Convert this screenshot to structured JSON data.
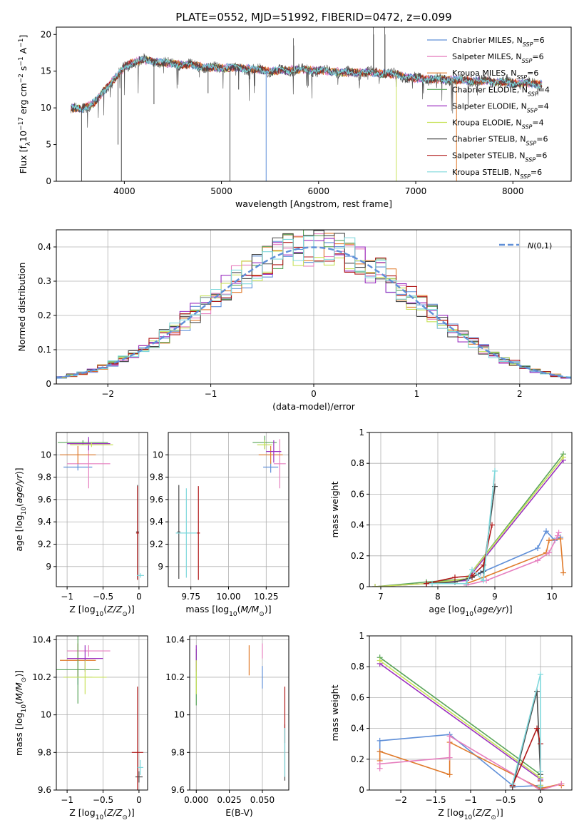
{
  "figure": {
    "title": "PLATE=0552, MJD=51992, FIBERID=0472, z=0.099"
  },
  "colors": {
    "chabrier_miles": "#5f8fd8",
    "salpeter_miles": "#e67fbf",
    "kroupa_miles": "#e07a2a",
    "chabrier_elodie": "#5aa55a",
    "salpeter_elodie": "#9b30c0",
    "kroupa_elodie": "#c8e25a",
    "chabrier_stelib": "#4a4a4a",
    "salpeter_stelib": "#b01818",
    "kroupa_stelib": "#7fd8dc",
    "normal_curve": "#5f8fd8"
  },
  "chart_data": [
    {
      "id": "spectrum",
      "type": "line",
      "xlabel": "wavelength [Angstrom, rest frame]",
      "ylabel": "Flux [f_λ10^-17 erg cm^-2 s^-1 A^-1]",
      "xlim": [
        3300,
        8600
      ],
      "ylim": [
        0,
        21
      ],
      "xticks": [
        4000,
        5000,
        6000,
        7000,
        8000
      ],
      "yticks": [
        0,
        5,
        10,
        15,
        20
      ],
      "grid": false,
      "legend_position": "right",
      "legend": [
        {
          "color_key": "chabrier_miles",
          "text": "Chabrier MILES, N",
          "sub": "SSP",
          "tail": "=6"
        },
        {
          "color_key": "salpeter_miles",
          "text": "Salpeter MILES, N",
          "sub": "SSP",
          "tail": "=6"
        },
        {
          "color_key": "kroupa_miles",
          "text": "Kroupa MILES, N",
          "sub": "SSP",
          "tail": "=6"
        },
        {
          "color_key": "chabrier_elodie",
          "text": "Chabrier ELODIE, N",
          "sub": "SSP",
          "tail": "=4"
        },
        {
          "color_key": "salpeter_elodie",
          "text": "Salpeter ELODIE, N",
          "sub": "SSP",
          "tail": "=4"
        },
        {
          "color_key": "kroupa_elodie",
          "text": "Kroupa ELODIE, N",
          "sub": "SSP",
          "tail": "=4"
        },
        {
          "color_key": "chabrier_stelib",
          "text": "Chabrier STELIB, N",
          "sub": "SSP",
          "tail": "=6"
        },
        {
          "color_key": "salpeter_stelib",
          "text": "Salpeter STELIB, N",
          "sub": "SSP",
          "tail": "=6"
        },
        {
          "color_key": "kroupa_stelib",
          "text": "Kroupa STELIB, N",
          "sub": "SSP",
          "tail": "=6"
        }
      ],
      "continuum_nodes": {
        "x": [
          3450,
          3550,
          3700,
          3800,
          3900,
          4000,
          4100,
          4200,
          4300,
          4500,
          4700,
          4900,
          5100,
          5300,
          5500,
          5800,
          6000,
          6300,
          6600,
          6800,
          7000,
          7200,
          7400,
          7600,
          7800,
          8000,
          8200,
          8300
        ],
        "y": [
          10.0,
          9.8,
          10.8,
          12.5,
          14.0,
          15.5,
          16.3,
          16.5,
          16.3,
          16.0,
          15.8,
          15.4,
          15.5,
          15.3,
          15.0,
          15.2,
          15.1,
          14.8,
          14.8,
          14.5,
          14.0,
          13.9,
          13.8,
          13.7,
          13.6,
          13.4,
          13.3,
          13.2
        ]
      },
      "absorption_lines": [
        {
          "x": 3560,
          "y": 0
        },
        {
          "x": 3935,
          "y": 5
        },
        {
          "x": 3970,
          "y": 0
        },
        {
          "x": 4305,
          "y": 10.5
        },
        {
          "x": 4862,
          "y": 12
        },
        {
          "x": 5087,
          "y": 0
        },
        {
          "x": 5177,
          "y": 12.5
        },
        {
          "x": 5460,
          "y": 0
        },
        {
          "x": 5893,
          "y": 13
        },
        {
          "x": 6800,
          "y": 0
        },
        {
          "x": 7420,
          "y": 0
        }
      ],
      "emission_spikes": [
        {
          "x": 5740,
          "y": 19.5
        },
        {
          "x": 6563,
          "y": 21
        },
        {
          "x": 6680,
          "y": 21
        }
      ]
    },
    {
      "id": "residual_histogram",
      "type": "histogram",
      "xlabel": "(data-model)/error",
      "ylabel": "Normed distribution",
      "xlim": [
        -2.5,
        2.5
      ],
      "ylim": [
        0,
        0.45
      ],
      "xticks": [
        -2,
        -1,
        0,
        1,
        2
      ],
      "yticks": [
        0.0,
        0.1,
        0.2,
        0.3,
        0.4
      ],
      "grid": true,
      "legend_position": "top-right",
      "legend_label": "N(0,1)",
      "bins": 50
    },
    {
      "id": "age_vs_Z",
      "type": "errorbar",
      "xlabel": "Z [log10(Z/Z⊙)]",
      "ylabel": "age  [log10(age/yr)]",
      "xlim": [
        -1.15,
        0.12
      ],
      "ylim": [
        8.82,
        10.2
      ],
      "xticks": [
        -1.0,
        -0.5,
        0.0
      ],
      "yticks": [
        9.0,
        9.2,
        9.4,
        9.6,
        9.8,
        10.0
      ],
      "grid": true,
      "points": [
        {
          "color_key": "chabrier_miles",
          "x": -0.85,
          "xerr": 0.2,
          "y": 9.89,
          "yerr": 0.03
        },
        {
          "color_key": "salpeter_miles",
          "x": -0.7,
          "xerr": 0.3,
          "y": 9.92,
          "yerr": 0.22
        },
        {
          "color_key": "kroupa_miles",
          "x": -0.85,
          "xerr": 0.25,
          "y": 10.0,
          "yerr": 0.08
        },
        {
          "color_key": "chabrier_elodie",
          "x": -0.78,
          "xerr": 0.35,
          "y": 10.11,
          "yerr": 0.02
        },
        {
          "color_key": "salpeter_elodie",
          "x": -0.7,
          "xerr": 0.3,
          "y": 10.1,
          "yerr": 0.06
        },
        {
          "color_key": "kroupa_elodie",
          "x": -0.66,
          "xerr": 0.3,
          "y": 10.09,
          "yerr": 0.02
        },
        {
          "color_key": "chabrier_stelib",
          "x": -0.02,
          "xerr": 0.02,
          "y": 9.31,
          "yerr": 0.42
        },
        {
          "color_key": "salpeter_stelib",
          "x": -0.02,
          "xerr": 0.02,
          "y": 9.3,
          "yerr": 0.42
        },
        {
          "color_key": "kroupa_stelib",
          "x": 0.02,
          "xerr": 0.05,
          "y": 8.92,
          "yerr": 0.02
        }
      ]
    },
    {
      "id": "age_vs_mass",
      "type": "errorbar",
      "xlabel": "mass [log10(M/M⊙)]",
      "ylabel": "",
      "xlim": [
        9.6,
        10.4
      ],
      "ylim": [
        8.82,
        10.2
      ],
      "xticks": [
        9.75,
        10.0,
        10.25
      ],
      "xtick_labels": [
        "9.75",
        "10.00",
        "10.25"
      ],
      "yticks": [
        9.0,
        9.2,
        9.4,
        9.6,
        9.8,
        10.0
      ],
      "grid": true,
      "points": [
        {
          "color_key": "chabrier_miles",
          "x": 10.28,
          "xerr": 0.05,
          "y": 9.89,
          "yerr": 0.05
        },
        {
          "color_key": "salpeter_miles",
          "x": 10.34,
          "xerr": 0.04,
          "y": 9.92,
          "yerr": 0.22
        },
        {
          "color_key": "kroupa_miles",
          "x": 10.28,
          "xerr": 0.08,
          "y": 10.0,
          "yerr": 0.08
        },
        {
          "color_key": "chabrier_elodie",
          "x": 10.24,
          "xerr": 0.08,
          "y": 10.11,
          "yerr": 0.06
        },
        {
          "color_key": "salpeter_elodie",
          "x": 10.3,
          "xerr": 0.05,
          "y": 10.03,
          "yerr": 0.1
        },
        {
          "color_key": "kroupa_elodie",
          "x": 10.24,
          "xerr": 0.05,
          "y": 10.09,
          "yerr": 0.04
        },
        {
          "color_key": "chabrier_stelib",
          "x": 9.67,
          "xerr": 0.01,
          "y": 9.31,
          "yerr": 0.42
        },
        {
          "color_key": "salpeter_stelib",
          "x": 9.8,
          "xerr": 0.01,
          "y": 9.3,
          "yerr": 0.42
        },
        {
          "color_key": "kroupa_stelib",
          "x": 9.72,
          "xerr": 0.07,
          "y": 9.3,
          "yerr": 0.4
        }
      ]
    },
    {
      "id": "weight_vs_age",
      "type": "line",
      "xlabel": "age  [log10(age/yr)]",
      "ylabel": "mass weight",
      "xlim": [
        6.8,
        10.35
      ],
      "ylim": [
        0,
        1.0
      ],
      "xticks": [
        7,
        8,
        9,
        10
      ],
      "yticks": [
        0.0,
        0.2,
        0.4,
        0.6,
        0.8,
        1.0
      ],
      "grid": true,
      "series": [
        {
          "color_key": "chabrier_miles",
          "x": [
            8.5,
            8.75,
            9.75,
            9.9,
            10.05,
            10.15
          ],
          "y": [
            0.04,
            0.09,
            0.25,
            0.36,
            0.3,
            0.32
          ]
        },
        {
          "color_key": "kroupa_miles",
          "x": [
            8.5,
            8.8,
            9.9,
            9.95,
            10.15,
            10.2
          ],
          "y": [
            0.02,
            0.06,
            0.22,
            0.3,
            0.31,
            0.09
          ]
        },
        {
          "color_key": "salpeter_miles",
          "x": [
            8.5,
            8.85,
            9.75,
            9.95,
            10.1,
            10.12
          ],
          "y": [
            0.01,
            0.04,
            0.17,
            0.22,
            0.33,
            0.35
          ]
        },
        {
          "color_key": "chabrier_elodie",
          "x": [
            6.9,
            7.8,
            8.5,
            10.2
          ],
          "y": [
            0.0,
            0.03,
            0.05,
            0.86
          ]
        },
        {
          "color_key": "salpeter_elodie",
          "x": [
            6.9,
            7.8,
            8.5,
            10.2
          ],
          "y": [
            0.0,
            0.02,
            0.04,
            0.82
          ]
        },
        {
          "color_key": "kroupa_elodie",
          "x": [
            6.9,
            7.8,
            8.5,
            10.2
          ],
          "y": [
            0.0,
            0.02,
            0.05,
            0.84
          ]
        },
        {
          "color_key": "chabrier_stelib",
          "x": [
            7.8,
            8.3,
            8.6,
            8.8,
            9.0
          ],
          "y": [
            0.02,
            0.03,
            0.06,
            0.1,
            0.65
          ]
        },
        {
          "color_key": "salpeter_stelib",
          "x": [
            7.8,
            8.3,
            8.6,
            8.8,
            8.95
          ],
          "y": [
            0.02,
            0.06,
            0.07,
            0.14,
            0.4
          ]
        },
        {
          "color_key": "kroupa_stelib",
          "x": [
            7.9,
            8.5,
            8.6,
            8.8,
            9.0
          ],
          "y": [
            0.02,
            0.02,
            0.11,
            0.04,
            0.75
          ]
        }
      ]
    },
    {
      "id": "mass_vs_Z",
      "type": "errorbar",
      "xlabel": "Z [log10(Z/Z⊙)]",
      "ylabel": "mass [log10(M/M⊙)]",
      "xlim": [
        -1.15,
        0.12
      ],
      "ylim": [
        9.6,
        10.42
      ],
      "xticks": [
        -1.0,
        -0.5,
        0.0
      ],
      "yticks": [
        9.6,
        9.8,
        10.0,
        10.2,
        10.4
      ],
      "grid": true,
      "points": [
        {
          "color_key": "chabrier_miles",
          "x": -0.85,
          "xerr": 0.2,
          "y": 10.2,
          "yerr": 0.04
        },
        {
          "color_key": "salpeter_miles",
          "x": -0.7,
          "xerr": 0.3,
          "y": 10.34,
          "yerr": 0.03
        },
        {
          "color_key": "kroupa_miles",
          "x": -0.85,
          "xerr": 0.25,
          "y": 10.29,
          "yerr": 0.09
        },
        {
          "color_key": "chabrier_elodie",
          "x": -0.85,
          "xerr": 0.3,
          "y": 10.24,
          "yerr": 0.18
        },
        {
          "color_key": "salpeter_elodie",
          "x": -0.75,
          "xerr": 0.25,
          "y": 10.3,
          "yerr": 0.07
        },
        {
          "color_key": "kroupa_elodie",
          "x": -0.75,
          "xerr": 0.3,
          "y": 10.2,
          "yerr": 0.09
        },
        {
          "color_key": "chabrier_stelib",
          "x": 0.0,
          "xerr": 0.05,
          "y": 9.67,
          "yerr": 0.03
        },
        {
          "color_key": "salpeter_stelib",
          "x": -0.02,
          "xerr": 0.08,
          "y": 9.8,
          "yerr": 0.35
        },
        {
          "color_key": "kroupa_stelib",
          "x": 0.02,
          "xerr": 0.04,
          "y": 9.72,
          "yerr": 0.04
        }
      ]
    },
    {
      "id": "mass_vs_ebv",
      "type": "errorbar",
      "xlabel": "E(B-V)",
      "ylabel": "",
      "xlim": [
        -0.005,
        0.07
      ],
      "ylim": [
        9.6,
        10.42
      ],
      "xticks": [
        0.0,
        0.025,
        0.05
      ],
      "xtick_labels": [
        "0.000",
        "0.025",
        "0.050"
      ],
      "yticks": [
        9.6,
        9.8,
        10.0,
        10.2,
        10.4
      ],
      "grid": true,
      "points": [
        {
          "color_key": "chabrier_miles",
          "x": 0.05,
          "xerr": 0.0,
          "y": 10.2,
          "yerr": 0.06
        },
        {
          "color_key": "salpeter_miles",
          "x": 0.05,
          "xerr": 0.0,
          "y": 10.34,
          "yerr": 0.04
        },
        {
          "color_key": "kroupa_miles",
          "x": 0.04,
          "xerr": 0.0,
          "y": 10.29,
          "yerr": 0.08
        },
        {
          "color_key": "chabrier_elodie",
          "x": 0.0,
          "xerr": 0.0,
          "y": 10.2,
          "yerr": 0.15
        },
        {
          "color_key": "salpeter_elodie",
          "x": 0.0,
          "xerr": 0.0,
          "y": 10.3,
          "yerr": 0.07
        },
        {
          "color_key": "kroupa_elodie",
          "x": 0.0,
          "xerr": 0.0,
          "y": 10.2,
          "yerr": 0.09
        },
        {
          "color_key": "chabrier_stelib",
          "x": 0.067,
          "xerr": 0.0,
          "y": 9.8,
          "yerr": 0.15
        },
        {
          "color_key": "salpeter_stelib",
          "x": 0.067,
          "xerr": 0.0,
          "y": 10.0,
          "yerr": 0.15
        },
        {
          "color_key": "kroupa_stelib",
          "x": 0.067,
          "xerr": 0.0,
          "y": 9.8,
          "yerr": 0.13
        }
      ]
    },
    {
      "id": "weight_vs_Z",
      "type": "line",
      "xlabel": "Z [log10(Z/Z⊙)]",
      "ylabel": "mass weight",
      "xlim": [
        -2.45,
        0.45
      ],
      "ylim": [
        0,
        1.0
      ],
      "xticks": [
        -2.0,
        -1.5,
        -1.0,
        -0.5,
        0.0
      ],
      "yticks": [
        0.0,
        0.2,
        0.4,
        0.6,
        0.8,
        1.0
      ],
      "grid": true,
      "series": [
        {
          "color_key": "chabrier_miles",
          "x": [
            -2.3,
            -2.3,
            -1.3,
            -0.4,
            -0.4,
            0.0,
            0.0
          ],
          "y": [
            0.25,
            0.32,
            0.36,
            0.03,
            0.02,
            0.03,
            0.02
          ]
        },
        {
          "color_key": "kroupa_miles",
          "x": [
            -2.3,
            -2.3,
            -1.3,
            -1.3,
            0.0,
            0.3,
            0.3
          ],
          "y": [
            0.19,
            0.25,
            0.1,
            0.31,
            0.01,
            0.04,
            0.03
          ]
        },
        {
          "color_key": "salpeter_miles",
          "x": [
            -2.3,
            -2.3,
            -1.3,
            -1.3,
            0.0,
            0.3
          ],
          "y": [
            0.14,
            0.17,
            0.21,
            0.35,
            0.0,
            0.04
          ]
        },
        {
          "color_key": "chabrier_elodie",
          "x": [
            -2.3,
            0.0,
            0.0
          ],
          "y": [
            0.86,
            0.1,
            0.03
          ]
        },
        {
          "color_key": "salpeter_elodie",
          "x": [
            -2.3,
            0.0,
            0.0
          ],
          "y": [
            0.82,
            0.07,
            0.03
          ]
        },
        {
          "color_key": "kroupa_elodie",
          "x": [
            -2.3,
            0.0,
            0.0
          ],
          "y": [
            0.84,
            0.08,
            0.03
          ]
        },
        {
          "color_key": "chabrier_stelib",
          "x": [
            -0.4,
            -0.05,
            0.0,
            0.0
          ],
          "y": [
            0.02,
            0.64,
            0.1,
            0.02
          ]
        },
        {
          "color_key": "salpeter_stelib",
          "x": [
            -0.4,
            -0.05,
            0.0,
            0.0
          ],
          "y": [
            0.03,
            0.4,
            0.3,
            0.06
          ]
        },
        {
          "color_key": "kroupa_stelib",
          "x": [
            -0.4,
            0.0,
            0.0,
            0.0
          ],
          "y": [
            0.04,
            0.75,
            0.12,
            0.02
          ]
        }
      ]
    }
  ]
}
